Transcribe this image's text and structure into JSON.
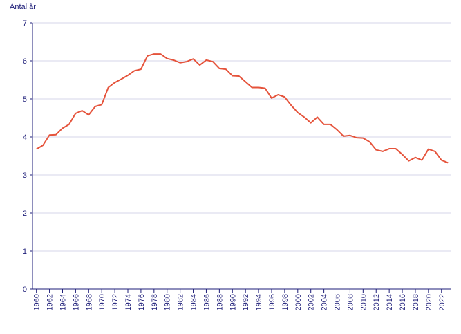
{
  "chart_data": {
    "type": "line",
    "y_label": "Antal år",
    "x": [
      1960,
      1961,
      1962,
      1963,
      1964,
      1965,
      1966,
      1967,
      1968,
      1969,
      1970,
      1971,
      1972,
      1973,
      1974,
      1975,
      1976,
      1977,
      1978,
      1979,
      1980,
      1981,
      1982,
      1983,
      1984,
      1985,
      1986,
      1987,
      1988,
      1989,
      1990,
      1991,
      1992,
      1993,
      1994,
      1995,
      1996,
      1997,
      1998,
      1999,
      2000,
      2001,
      2002,
      2003,
      2004,
      2005,
      2006,
      2007,
      2008,
      2009,
      2010,
      2011,
      2012,
      2013,
      2014,
      2015,
      2016,
      2017,
      2018,
      2019,
      2020,
      2021,
      2022,
      2023
    ],
    "values": [
      3.68,
      3.78,
      4.05,
      4.06,
      4.23,
      4.33,
      4.62,
      4.69,
      4.58,
      4.8,
      4.85,
      5.3,
      5.43,
      5.52,
      5.62,
      5.74,
      5.78,
      6.13,
      6.18,
      6.18,
      6.06,
      6.02,
      5.95,
      5.98,
      6.05,
      5.89,
      6.02,
      5.98,
      5.8,
      5.78,
      5.61,
      5.6,
      5.45,
      5.3,
      5.3,
      5.28,
      5.02,
      5.11,
      5.05,
      4.83,
      4.64,
      4.52,
      4.37,
      4.52,
      4.33,
      4.33,
      4.19,
      4.02,
      4.04,
      3.98,
      3.97,
      3.87,
      3.66,
      3.62,
      3.69,
      3.69,
      3.54,
      3.37,
      3.46,
      3.39,
      3.68,
      3.62,
      3.39,
      3.32
    ],
    "color": "#e5533b",
    "xlim": [
      1959.4,
      2023.4
    ],
    "xticks": [
      1960,
      1962,
      1964,
      1966,
      1968,
      1970,
      1972,
      1974,
      1976,
      1978,
      1980,
      1982,
      1984,
      1986,
      1988,
      1990,
      1992,
      1994,
      1996,
      1998,
      2000,
      2002,
      2004,
      2006,
      2008,
      2010,
      2012,
      2014,
      2016,
      2018,
      2020,
      2022
    ],
    "ylim": [
      0,
      7
    ],
    "yticks": [
      0,
      1,
      2,
      3,
      4,
      5,
      6,
      7
    ],
    "grid": true
  }
}
